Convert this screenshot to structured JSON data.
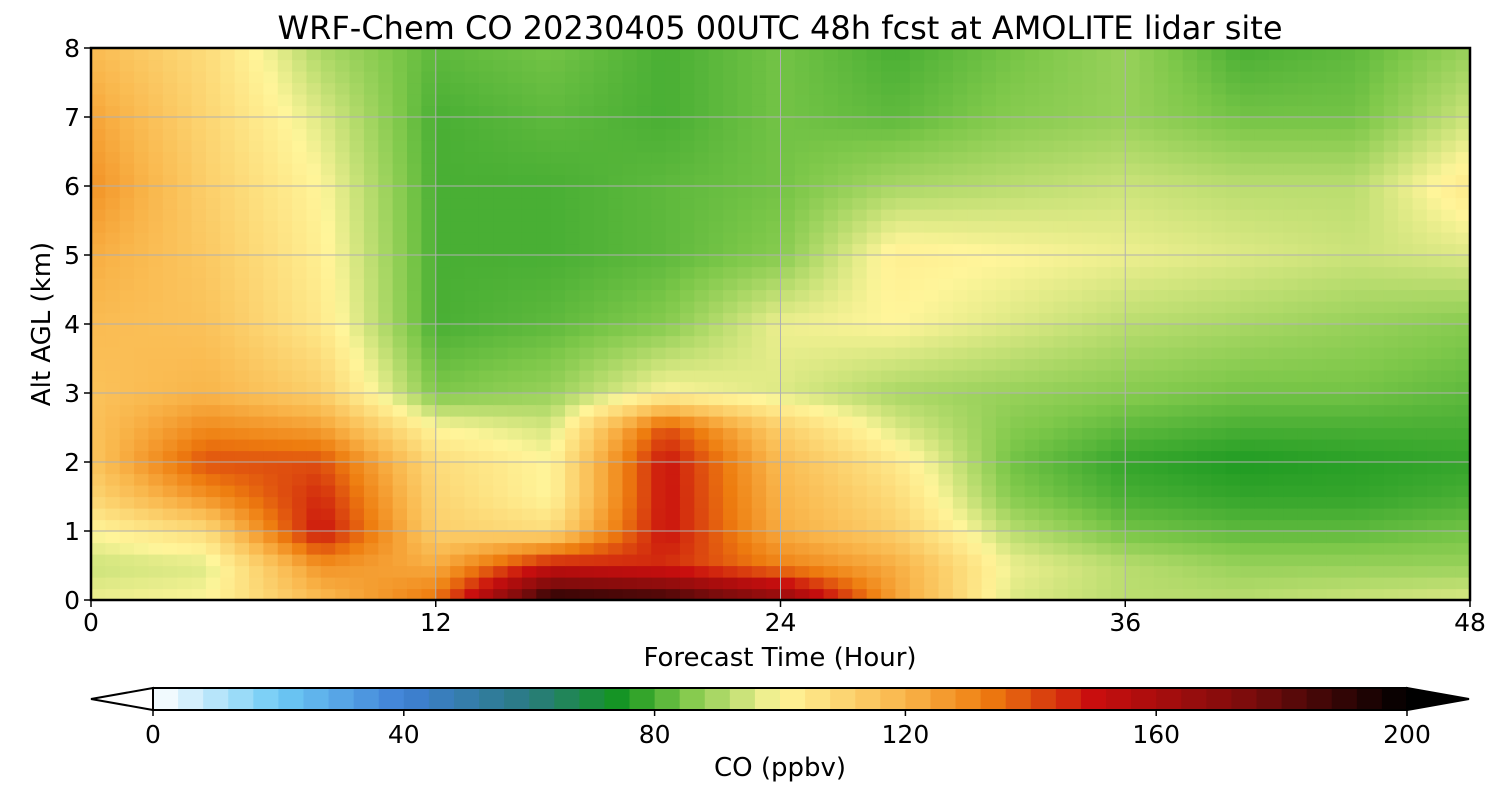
{
  "chart_data": {
    "type": "heatmap",
    "title": "WRF-Chem CO  20230405 00UTC 48h fcst at AMOLITE lidar site",
    "xlabel": "Forecast Time (Hour)",
    "ylabel": "Alt AGL (km)",
    "xlim": [
      0,
      48
    ],
    "ylim": [
      0,
      8
    ],
    "x_ticks": [
      0,
      12,
      24,
      36,
      48
    ],
    "y_ticks": [
      0,
      1,
      2,
      3,
      4,
      5,
      6,
      7,
      8
    ],
    "grid": true,
    "x": [
      0,
      4,
      8,
      12,
      16,
      20,
      24,
      28,
      32,
      36,
      40,
      44,
      48
    ],
    "y": [
      0,
      0.5,
      1,
      1.5,
      2,
      2.5,
      3,
      4,
      5,
      6,
      7,
      8
    ],
    "z_units": "ppbv",
    "z": [
      [
        98,
        100,
        118,
        135,
        195,
        190,
        170,
        125,
        96,
        92,
        92,
        94,
        96
      ],
      [
        94,
        96,
        128,
        122,
        150,
        145,
        132,
        122,
        98,
        92,
        88,
        88,
        88
      ],
      [
        100,
        108,
        150,
        112,
        108,
        150,
        122,
        112,
        92,
        84,
        82,
        82,
        84
      ],
      [
        110,
        128,
        146,
        110,
        100,
        150,
        120,
        108,
        86,
        80,
        78,
        78,
        80
      ],
      [
        115,
        140,
        140,
        108,
        100,
        150,
        118,
        104,
        84,
        78,
        76,
        77,
        78
      ],
      [
        116,
        130,
        125,
        100,
        95,
        140,
        112,
        96,
        86,
        82,
        80,
        80,
        80
      ],
      [
        116,
        120,
        112,
        85,
        88,
        100,
        96,
        90,
        88,
        86,
        84,
        84,
        82
      ],
      [
        118,
        116,
        104,
        80,
        82,
        86,
        98,
        100,
        96,
        92,
        90,
        88,
        86
      ],
      [
        122,
        114,
        102,
        80,
        80,
        82,
        86,
        102,
        100,
        98,
        96,
        94,
        96
      ],
      [
        128,
        112,
        100,
        80,
        80,
        82,
        84,
        90,
        92,
        94,
        92,
        92,
        104
      ],
      [
        124,
        110,
        96,
        80,
        82,
        80,
        84,
        82,
        86,
        88,
        84,
        84,
        94
      ],
      [
        118,
        108,
        90,
        82,
        84,
        80,
        84,
        80,
        84,
        88,
        80,
        82,
        88
      ]
    ],
    "colorbar": {
      "label": "CO  (ppbv)",
      "min": 0,
      "max": 200,
      "ticks": [
        0,
        40,
        80,
        120,
        160,
        200
      ],
      "extend": "both",
      "colors": [
        [
          0,
          "#ffffff"
        ],
        [
          20,
          "#6ecbf5"
        ],
        [
          40,
          "#3f7fd6"
        ],
        [
          60,
          "#2a7a80"
        ],
        [
          75,
          "#14961e"
        ],
        [
          85,
          "#7ec84a"
        ],
        [
          100,
          "#fff59a"
        ],
        [
          120,
          "#f9b54a"
        ],
        [
          133,
          "#ee7d0f"
        ],
        [
          150,
          "#c90e0e"
        ],
        [
          175,
          "#7a0c0c"
        ],
        [
          200,
          "#000000"
        ]
      ]
    }
  }
}
